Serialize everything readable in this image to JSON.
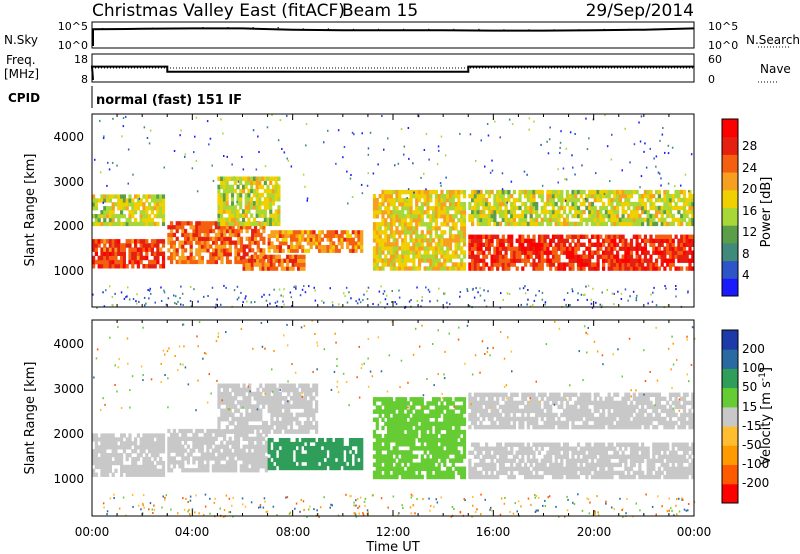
{
  "header": {
    "title": "Christmas Valley East (fitACF)",
    "beam": "Beam 15",
    "date": "29/Sep/2014"
  },
  "chart_data": [
    {
      "type": "line",
      "name": "noise",
      "left_label": "N.Sky",
      "right_label": "N.Search",
      "left_ticks": [
        "10^5",
        "10^0"
      ],
      "right_ticks": [
        "10^5",
        "10^0"
      ],
      "x": [
        "00:00",
        "02:00",
        "04:00",
        "06:00",
        "08:00",
        "10:00",
        "12:00",
        "14:00",
        "16:00",
        "18:00",
        "20:00",
        "22:00",
        "24:00"
      ],
      "sky_log10": [
        3.8,
        3.9,
        4.0,
        4.0,
        3.7,
        3.6,
        3.6,
        3.6,
        3.5,
        3.5,
        3.6,
        3.7,
        4.0
      ],
      "ylim": [
        0,
        5
      ]
    },
    {
      "type": "line",
      "name": "frequency",
      "left_label": "Freq.",
      "left_unit": "[MHz]",
      "right_label": "Nave",
      "left_ticks": [
        "18",
        "8"
      ],
      "right_ticks": [
        "60",
        "0"
      ],
      "freq_steps": [
        {
          "start": 0,
          "end": 3,
          "value": 13.6
        },
        {
          "start": 3,
          "end": 15,
          "value": 11.4
        },
        {
          "start": 15,
          "end": 24,
          "value": 13.6
        }
      ],
      "nave": 30,
      "ylim": [
        8,
        18
      ]
    },
    {
      "type": "text",
      "name": "cpid",
      "label": "CPID",
      "value": "normal (fast) 151 IF"
    },
    {
      "type": "heatmap",
      "name": "power",
      "ylabel": "Slant Range [km]",
      "yticks": [
        1000,
        2000,
        3000,
        4000
      ],
      "ylim": [
        180,
        4500
      ],
      "xlim": [
        0,
        24
      ],
      "colorbar": {
        "label": "Power [dB]",
        "ticks": [
          "4",
          "8",
          "12",
          "16",
          "20",
          "24",
          "28"
        ],
        "colors": [
          "#1a1aff",
          "#2e55c8",
          "#3f8a7a",
          "#5a9e4a",
          "#a8d838",
          "#f0d000",
          "#f7a020",
          "#f56010",
          "#e62010",
          "#ff0000"
        ]
      },
      "echo_bands": [
        {
          "t0": 0.0,
          "t1": 2.9,
          "r0": 1050,
          "r1": 1700,
          "value": 26
        },
        {
          "t0": 0.0,
          "t1": 2.9,
          "r0": 2000,
          "r1": 2700,
          "value": 16
        },
        {
          "t0": 3.0,
          "t1": 6.9,
          "r0": 1150,
          "r1": 2100,
          "value": 24
        },
        {
          "t0": 5.0,
          "t1": 7.5,
          "r0": 2000,
          "r1": 3100,
          "value": 16
        },
        {
          "t0": 7.0,
          "t1": 10.8,
          "r0": 1400,
          "r1": 1900,
          "value": 22
        },
        {
          "t0": 6.0,
          "t1": 8.5,
          "r0": 1000,
          "r1": 1350,
          "value": 24
        },
        {
          "t0": 11.2,
          "t1": 14.9,
          "r0": 1000,
          "r1": 2800,
          "value": 18
        },
        {
          "t0": 15.0,
          "t1": 24.0,
          "r0": 1000,
          "r1": 1800,
          "value": 27
        },
        {
          "t0": 15.0,
          "t1": 24.0,
          "r0": 2000,
          "r1": 2800,
          "value": 16
        }
      ]
    },
    {
      "type": "heatmap",
      "name": "velocity",
      "ylabel": "Slant Range [km]",
      "yticks": [
        1000,
        2000,
        3000,
        4000
      ],
      "ylim": [
        180,
        4500
      ],
      "xlim": [
        0,
        24
      ],
      "xlabel": "Time UT",
      "xticks": [
        "00:00",
        "04:00",
        "08:00",
        "12:00",
        "16:00",
        "20:00",
        "00:00"
      ],
      "colorbar": {
        "label": "Velocity [m s",
        "label_sup": "-1",
        "label_end": "]",
        "ticks": [
          "-200",
          "-100",
          "-50",
          "-15",
          "15",
          "50",
          "100",
          "200"
        ],
        "colors": [
          "#ff0000",
          "#ff5a00",
          "#ff9a00",
          "#ffbe30",
          "#c8c8c8",
          "#66cc33",
          "#2e9e5a",
          "#2a6aa0",
          "#1c3aa8"
        ]
      },
      "echo_bands": [
        {
          "t0": 0.0,
          "t1": 2.9,
          "r0": 1050,
          "r1": 2000,
          "value": 0
        },
        {
          "t0": 3.0,
          "t1": 7.0,
          "r0": 1150,
          "r1": 2100,
          "value": 0
        },
        {
          "t0": 5.0,
          "t1": 9.0,
          "r0": 2000,
          "r1": 3100,
          "value": 0
        },
        {
          "t0": 7.0,
          "t1": 10.8,
          "r0": 1200,
          "r1": 1900,
          "value": 60
        },
        {
          "t0": 11.2,
          "t1": 14.9,
          "r0": 1000,
          "r1": 2800,
          "value": 40
        },
        {
          "t0": 15.0,
          "t1": 24.0,
          "r0": 1000,
          "r1": 1800,
          "value": 0
        },
        {
          "t0": 15.0,
          "t1": 24.0,
          "r0": 2100,
          "r1": 2900,
          "value": 0
        }
      ]
    }
  ]
}
